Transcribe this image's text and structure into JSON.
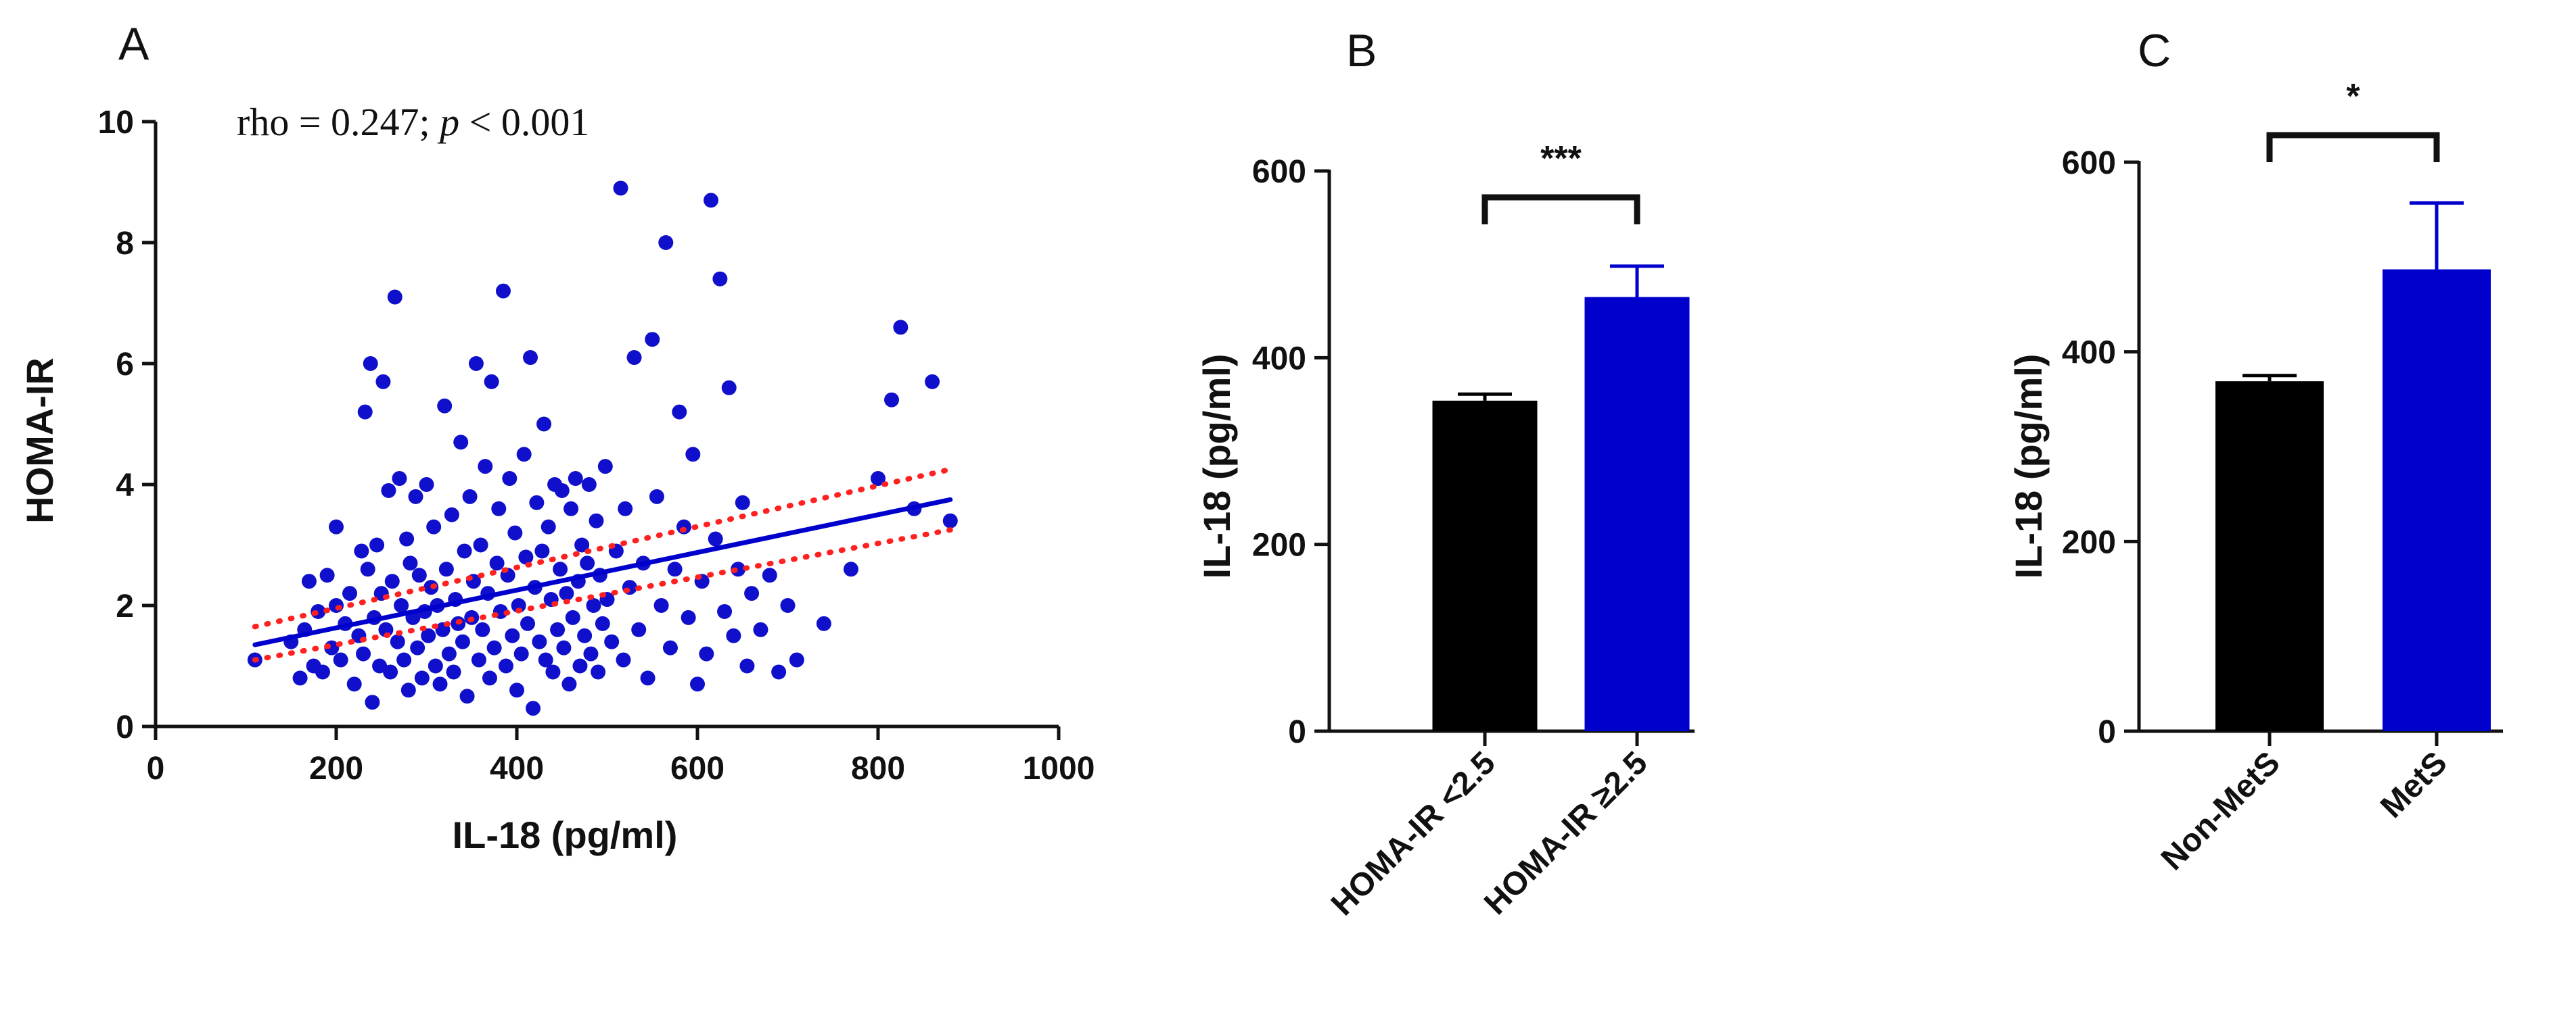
{
  "colors": {
    "black": "#000000",
    "blue": "#0000cc",
    "dot": "#1010cc",
    "ci": "#ff2020"
  },
  "chart_data": [
    {
      "panel": "A",
      "type": "scatter",
      "annotation": {
        "text": "rho = 0.247; ",
        "p_symbol": "p",
        "p_text": " < 0.001"
      },
      "xlabel": "IL-18 (pg/ml)",
      "ylabel": "HOMA-IR",
      "xlim": [
        0,
        1000
      ],
      "ylim": [
        0,
        10
      ],
      "xticks": [
        "0",
        "200",
        "400",
        "600",
        "800",
        "1000"
      ],
      "yticks": [
        "0",
        "2",
        "4",
        "6",
        "8",
        "10"
      ],
      "regression": {
        "x": [
          110,
          880
        ],
        "y": [
          1.35,
          3.75
        ]
      },
      "ci_upper": {
        "x": [
          110,
          880
        ],
        "y": [
          1.65,
          4.25
        ]
      },
      "ci_lower": {
        "x": [
          110,
          880
        ],
        "y": [
          1.1,
          3.25
        ]
      },
      "points": [
        [
          110,
          1.1
        ],
        [
          150,
          1.4
        ],
        [
          160,
          0.8
        ],
        [
          165,
          1.6
        ],
        [
          170,
          2.4
        ],
        [
          175,
          1.0
        ],
        [
          180,
          1.9
        ],
        [
          185,
          0.9
        ],
        [
          190,
          2.5
        ],
        [
          195,
          1.3
        ],
        [
          200,
          2.0
        ],
        [
          200,
          3.3
        ],
        [
          205,
          1.1
        ],
        [
          210,
          1.7
        ],
        [
          215,
          2.2
        ],
        [
          220,
          0.7
        ],
        [
          225,
          1.5
        ],
        [
          228,
          2.9
        ],
        [
          230,
          1.2
        ],
        [
          232,
          5.2
        ],
        [
          235,
          2.6
        ],
        [
          238,
          6.0
        ],
        [
          240,
          0.4
        ],
        [
          242,
          1.8
        ],
        [
          245,
          3.0
        ],
        [
          248,
          1.0
        ],
        [
          250,
          2.2
        ],
        [
          252,
          5.7
        ],
        [
          255,
          1.6
        ],
        [
          258,
          3.9
        ],
        [
          260,
          0.9
        ],
        [
          262,
          2.4
        ],
        [
          265,
          7.1
        ],
        [
          268,
          1.4
        ],
        [
          270,
          4.1
        ],
        [
          272,
          2.0
        ],
        [
          275,
          1.1
        ],
        [
          278,
          3.1
        ],
        [
          280,
          0.6
        ],
        [
          282,
          2.7
        ],
        [
          285,
          1.8
        ],
        [
          288,
          3.8
        ],
        [
          290,
          1.3
        ],
        [
          292,
          2.5
        ],
        [
          295,
          0.8
        ],
        [
          298,
          1.9
        ],
        [
          300,
          4.0
        ],
        [
          302,
          1.5
        ],
        [
          305,
          2.3
        ],
        [
          308,
          3.3
        ],
        [
          310,
          1.0
        ],
        [
          312,
          2.0
        ],
        [
          315,
          0.7
        ],
        [
          318,
          1.6
        ],
        [
          320,
          5.3
        ],
        [
          322,
          2.6
        ],
        [
          325,
          1.2
        ],
        [
          328,
          3.5
        ],
        [
          330,
          0.9
        ],
        [
          332,
          2.1
        ],
        [
          335,
          1.7
        ],
        [
          338,
          4.7
        ],
        [
          340,
          1.4
        ],
        [
          342,
          2.9
        ],
        [
          345,
          0.5
        ],
        [
          348,
          3.8
        ],
        [
          350,
          1.8
        ],
        [
          352,
          2.4
        ],
        [
          355,
          6.0
        ],
        [
          358,
          1.1
        ],
        [
          360,
          3.0
        ],
        [
          362,
          1.6
        ],
        [
          365,
          4.3
        ],
        [
          368,
          2.2
        ],
        [
          370,
          0.8
        ],
        [
          372,
          5.7
        ],
        [
          375,
          1.3
        ],
        [
          378,
          2.7
        ],
        [
          380,
          3.6
        ],
        [
          382,
          1.9
        ],
        [
          385,
          7.2
        ],
        [
          388,
          1.0
        ],
        [
          390,
          2.5
        ],
        [
          392,
          4.1
        ],
        [
          395,
          1.5
        ],
        [
          398,
          3.2
        ],
        [
          400,
          0.6
        ],
        [
          402,
          2.0
        ],
        [
          405,
          1.2
        ],
        [
          408,
          4.5
        ],
        [
          410,
          2.8
        ],
        [
          412,
          1.7
        ],
        [
          415,
          6.1
        ],
        [
          418,
          0.3
        ],
        [
          420,
          2.3
        ],
        [
          422,
          3.7
        ],
        [
          425,
          1.4
        ],
        [
          428,
          2.9
        ],
        [
          430,
          5.0
        ],
        [
          432,
          1.1
        ],
        [
          435,
          3.3
        ],
        [
          438,
          2.1
        ],
        [
          440,
          0.9
        ],
        [
          442,
          4.0
        ],
        [
          445,
          1.6
        ],
        [
          448,
          2.6
        ],
        [
          450,
          3.9
        ],
        [
          452,
          1.3
        ],
        [
          455,
          2.2
        ],
        [
          458,
          0.7
        ],
        [
          460,
          3.6
        ],
        [
          462,
          1.8
        ],
        [
          465,
          4.1
        ],
        [
          468,
          2.4
        ],
        [
          470,
          1.0
        ],
        [
          472,
          3.0
        ],
        [
          475,
          1.5
        ],
        [
          478,
          2.7
        ],
        [
          480,
          4.0
        ],
        [
          482,
          1.2
        ],
        [
          485,
          2.0
        ],
        [
          488,
          3.4
        ],
        [
          490,
          0.9
        ],
        [
          492,
          2.5
        ],
        [
          495,
          1.7
        ],
        [
          498,
          4.3
        ],
        [
          500,
          2.1
        ],
        [
          505,
          1.4
        ],
        [
          510,
          2.9
        ],
        [
          515,
          8.9
        ],
        [
          518,
          1.1
        ],
        [
          520,
          3.6
        ],
        [
          525,
          2.3
        ],
        [
          530,
          6.1
        ],
        [
          535,
          1.6
        ],
        [
          540,
          2.7
        ],
        [
          545,
          0.8
        ],
        [
          550,
          6.4
        ],
        [
          555,
          3.8
        ],
        [
          560,
          2.0
        ],
        [
          565,
          8.0
        ],
        [
          570,
          1.3
        ],
        [
          575,
          2.6
        ],
        [
          580,
          5.2
        ],
        [
          585,
          3.3
        ],
        [
          590,
          1.8
        ],
        [
          595,
          4.5
        ],
        [
          600,
          0.7
        ],
        [
          605,
          2.4
        ],
        [
          610,
          1.2
        ],
        [
          615,
          8.7
        ],
        [
          620,
          3.1
        ],
        [
          625,
          7.4
        ],
        [
          630,
          1.9
        ],
        [
          635,
          5.6
        ],
        [
          640,
          1.5
        ],
        [
          645,
          2.6
        ],
        [
          650,
          3.7
        ],
        [
          655,
          1.0
        ],
        [
          660,
          2.2
        ],
        [
          670,
          1.6
        ],
        [
          680,
          2.5
        ],
        [
          690,
          0.9
        ],
        [
          700,
          2.0
        ],
        [
          710,
          1.1
        ],
        [
          740,
          1.7
        ],
        [
          770,
          2.6
        ],
        [
          800,
          4.1
        ],
        [
          815,
          5.4
        ],
        [
          825,
          6.6
        ],
        [
          840,
          3.6
        ],
        [
          860,
          5.7
        ],
        [
          880,
          3.4
        ]
      ]
    },
    {
      "panel": "B",
      "type": "bar",
      "ylabel": "IL-18 (pg/ml)",
      "ylim": [
        0,
        600
      ],
      "yticks": [
        "0",
        "200",
        "400",
        "600"
      ],
      "categories": [
        "HOMA-IR <2.5",
        "HOMA-IR ≥2.5"
      ],
      "values": [
        354,
        465
      ],
      "errors": [
        7,
        33
      ],
      "significance": "***"
    },
    {
      "panel": "C",
      "type": "bar",
      "ylabel": "IL-18 (pg/ml)",
      "ylim": [
        0,
        600
      ],
      "yticks": [
        "0",
        "200",
        "400",
        "600"
      ],
      "categories": [
        "Non-MetS",
        "MetS"
      ],
      "values": [
        369,
        487
      ],
      "errors": [
        6,
        70
      ],
      "significance": "*"
    }
  ]
}
